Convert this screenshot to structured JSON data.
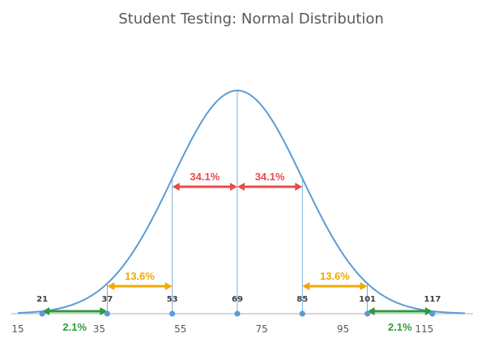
{
  "chart_data": {
    "type": "line",
    "title": "Student Testing: Normal Distribution",
    "mean": 69,
    "sd": 16,
    "xlim": [
      15,
      125
    ],
    "x_ticks": [
      "15",
      "35",
      "55",
      "75",
      "95",
      "115"
    ],
    "points": [
      {
        "x": 21,
        "label": "21"
      },
      {
        "x": 37,
        "label": "37"
      },
      {
        "x": 53,
        "label": "53"
      },
      {
        "x": 69,
        "label": "69"
      },
      {
        "x": 85,
        "label": "85"
      },
      {
        "x": 101,
        "label": "101"
      },
      {
        "x": 117,
        "label": "117"
      }
    ],
    "intervals": [
      {
        "from": 53,
        "to": 69,
        "label": "34.1%",
        "color": "#e84b4b"
      },
      {
        "from": 69,
        "to": 85,
        "label": "34.1%",
        "color": "#e84b4b"
      },
      {
        "from": 37,
        "to": 53,
        "label": "13.6%",
        "color": "#f2a900"
      },
      {
        "from": 85,
        "to": 101,
        "label": "13.6%",
        "color": "#f2a900"
      },
      {
        "from": 21,
        "to": 37,
        "label": "2.1%",
        "color": "#2e9a3a"
      },
      {
        "from": 101,
        "to": 117,
        "label": "2.1%",
        "color": "#2e9a3a"
      }
    ],
    "curve_color": "#5b9bd5",
    "axis_color": "#bfbfbf"
  }
}
